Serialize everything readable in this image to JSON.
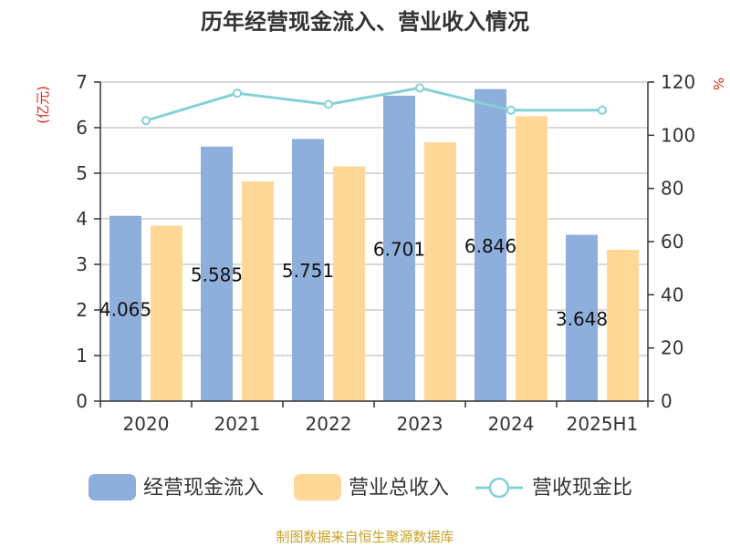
{
  "chart_data": {
    "type": "bar",
    "title": "历年经营现金流入、营业收入情况",
    "categories": [
      "2020",
      "2021",
      "2022",
      "2023",
      "2024",
      "2025H1"
    ],
    "series": [
      {
        "name": "经营现金流入",
        "type": "bar",
        "axis": "left",
        "color": "#8eaedb",
        "values": [
          4.065,
          5.585,
          5.751,
          6.701,
          6.846,
          3.648
        ],
        "labels": [
          "4.065",
          "5.585",
          "5.751",
          "6.701",
          "6.846",
          "3.648"
        ]
      },
      {
        "name": "营业总收入",
        "type": "bar",
        "axis": "left",
        "color": "#ffd897",
        "values": [
          3.85,
          4.82,
          5.15,
          5.68,
          6.25,
          3.32
        ]
      },
      {
        "name": "营收现金比",
        "type": "line",
        "axis": "right",
        "color": "#86d1d6",
        "values": [
          105.5,
          115.8,
          111.6,
          117.8,
          109.4,
          109.4
        ]
      }
    ],
    "y_left": {
      "unit": "(亿元)",
      "range": [
        0,
        7
      ],
      "ticks": [
        "0",
        "1",
        "2",
        "3",
        "4",
        "5",
        "6",
        "7"
      ]
    },
    "y_right": {
      "unit": "%",
      "range": [
        0,
        120
      ],
      "ticks": [
        "0",
        "20",
        "40",
        "60",
        "80",
        "100",
        "120"
      ]
    },
    "grid": true,
    "legend_position": "bottom"
  },
  "source": "制图数据来自恒生聚源数据库"
}
